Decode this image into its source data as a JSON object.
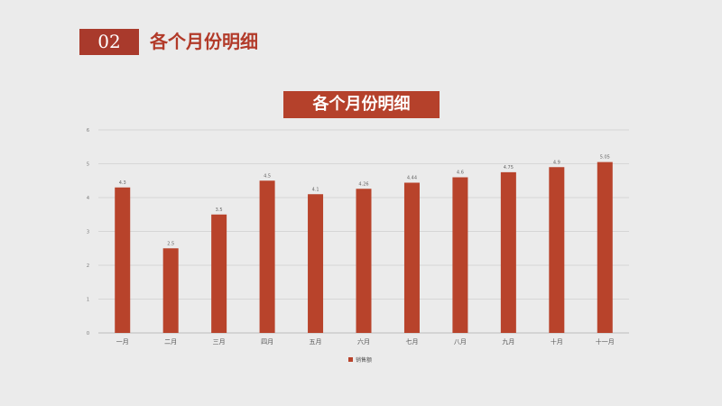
{
  "header": {
    "section_number": "02",
    "section_title": "各个月份明细"
  },
  "chart_data": {
    "type": "bar",
    "title": "各个月份明细",
    "categories": [
      "一月",
      "二月",
      "三月",
      "四月",
      "五月",
      "六月",
      "七月",
      "八月",
      "九月",
      "十月",
      "十一月"
    ],
    "series": [
      {
        "name": "销售额",
        "values": [
          4.3,
          2.5,
          3.5,
          4.5,
          4.1,
          4.26,
          4.44,
          4.6,
          4.75,
          4.9,
          5.05
        ],
        "color": "#b8432b"
      }
    ],
    "ylim": [
      0,
      6
    ],
    "yticks": [
      0,
      1,
      2,
      3,
      4,
      5,
      6
    ],
    "grid": true,
    "legend": "bottom"
  }
}
